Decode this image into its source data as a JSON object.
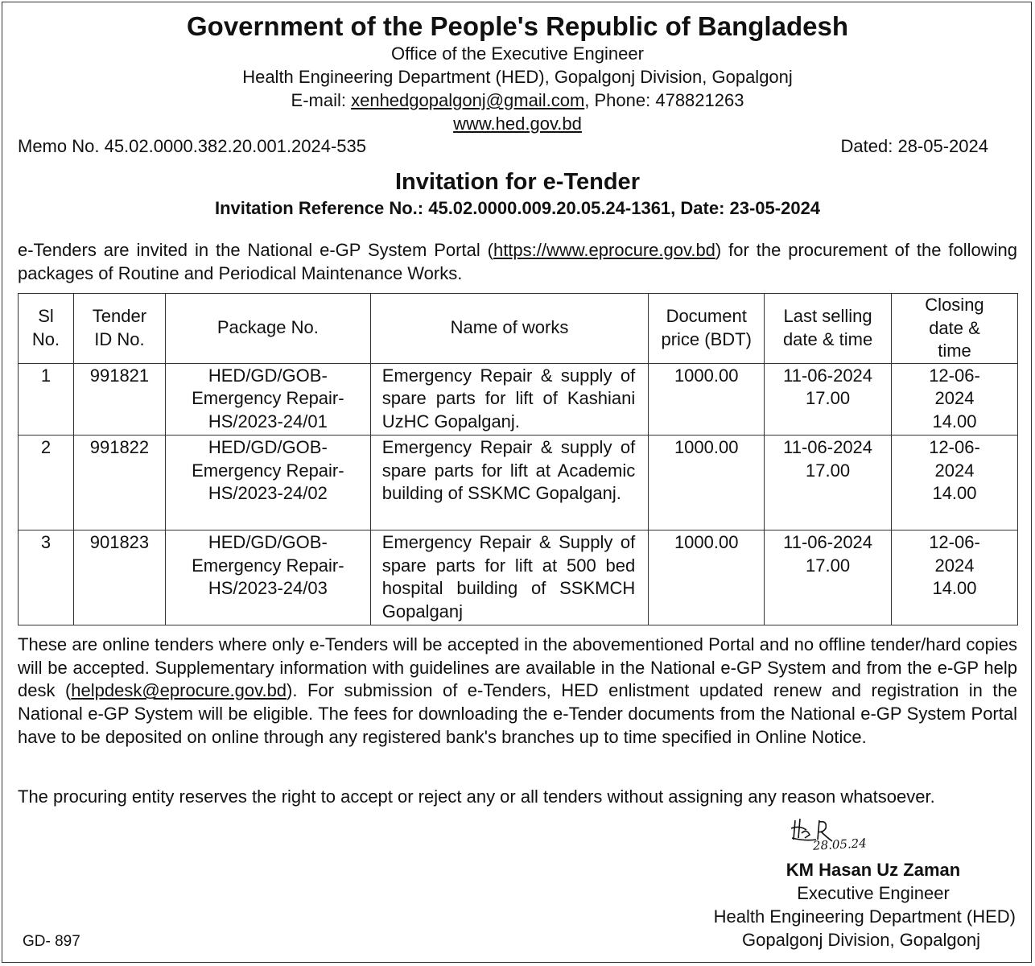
{
  "header": {
    "government": "Government of the People's Republic of Bangladesh",
    "office": "Office of the Executive Engineer",
    "department": "Health Engineering Department (HED), Gopalgonj Division, Gopalgonj",
    "email_label": "E-mail: ",
    "email": "xenhedgopalgonj@gmail.com",
    "phone": ", Phone: 478821263",
    "website": "www.hed.gov.bd"
  },
  "memo": "Memo No. 45.02.0000.382.20.001.2024-535",
  "dated": "Dated: 28-05-2024",
  "invitation_title": "Invitation for e-Tender",
  "invitation_ref": "Invitation Reference No.: 45.02.0000.009.20.05.24-1361, Date: 23-05-2024",
  "intro": {
    "before": "e-Tenders are invited in the National e-GP System Portal (",
    "link": "https://www.eprocure.gov.bd",
    "after": ") for the procurement of the following packages of Routine and Periodical Maintenance Works."
  },
  "table": {
    "headers": [
      "Sl No.",
      "Tender ID No.",
      "Package No.",
      "Name of works",
      "Document price (BDT)",
      "Last selling date & time",
      "Closing date & time"
    ],
    "rows": [
      [
        "1",
        "991821",
        "HED/GD/GOB-Emergency Repair-HS/2023-24/01",
        "Emergency Repair & supply of spare parts for lift of Kashiani UzHC Gopalganj.",
        "1000.00",
        "11-06-2024 17.00",
        "12-06-2024 14.00"
      ],
      [
        "2",
        "991822",
        "HED/GD/GOB-Emergency Repair-HS/2023-24/02",
        "Emergency Repair & supply of spare parts for lift at Academic building of SSKMC Gopalganj.",
        "1000.00",
        "11-06-2024 17.00",
        "12-06-2024 14.00"
      ],
      [
        "3",
        "901823",
        "HED/GD/GOB-Emergency Repair-HS/2023-24/03",
        "Emergency Repair & Supply of spare parts for lift at 500 bed hospital building of SSKMCH Gopalganj",
        "1000.00",
        "11-06-2024 17.00",
        "12-06-2024 14.00"
      ]
    ]
  },
  "body1": {
    "before": "These are online tenders where only e-Tenders will be accepted in the abovementioned Portal and no offline tender/hard copies will be accepted. Supplementary information with guidelines are available in the National e-GP System and from the e-GP help desk (",
    "link": "helpdesk@eprocure.gov.bd",
    "after": "). For submission of e-Tenders, HED enlistment updated renew and registration in the National e-GP System will be eligible. The fees for downloading the e-Tender documents from the National e-GP System Portal have to be deposited on online through any registered bank's branches up to time specified in Online Notice."
  },
  "body2": "The procuring entity reserves the right to accept or reject any or all tenders without assigning any reason whatsoever.",
  "signature": {
    "date": "28.05.24",
    "name": "KM Hasan Uz Zaman",
    "designation": "Executive Engineer",
    "department": "Health Engineering Department (HED)",
    "location": "Gopalgonj Division, Gopalgonj"
  },
  "code": "GD- 897"
}
